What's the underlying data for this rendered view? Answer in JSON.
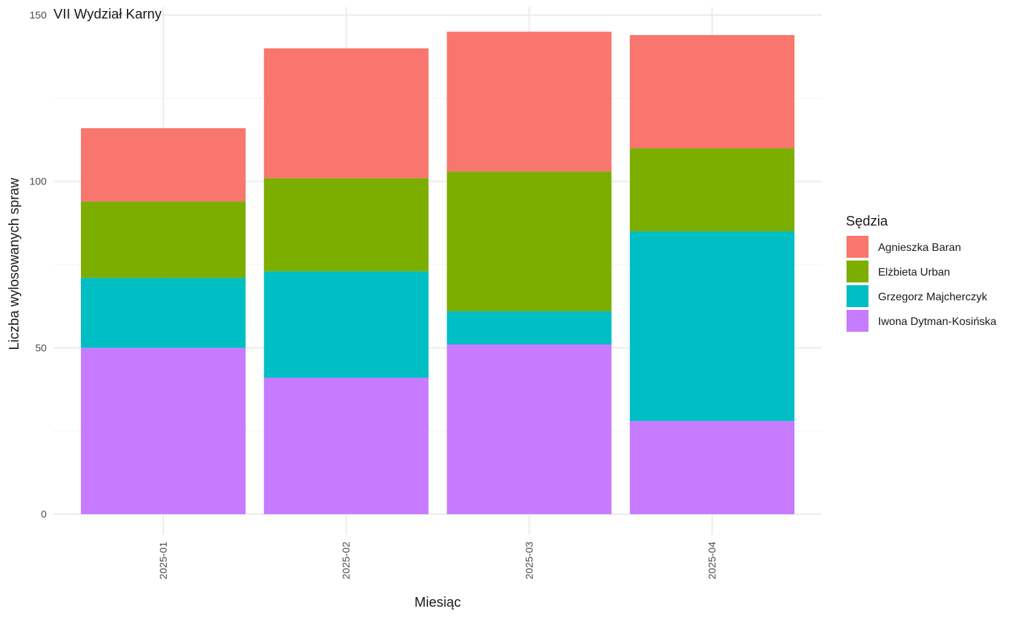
{
  "chart_data": {
    "type": "bar",
    "stacked": true,
    "title": "VII Wydział Karny",
    "xlabel": "Miesiąc",
    "ylabel": "Liczba wylosowanych spraw",
    "ylim": [
      0,
      150
    ],
    "yticks": [
      0,
      50,
      100,
      150
    ],
    "categories": [
      "2025-01",
      "2025-02",
      "2025-03",
      "2025-04"
    ],
    "legend": {
      "title": "Sędzia",
      "position": "right"
    },
    "grid": true,
    "series": [
      {
        "name": "Iwona Dytman-Kosińska",
        "color": "#C77CFF",
        "values": [
          50,
          41,
          51,
          28
        ]
      },
      {
        "name": "Grzegorz Majcherczyk",
        "color": "#00BFC4",
        "values": [
          21,
          32,
          10,
          57
        ]
      },
      {
        "name": "Elżbieta Urban",
        "color": "#7CAE00",
        "values": [
          23,
          28,
          42,
          25
        ]
      },
      {
        "name": "Agnieszka Baran",
        "color": "#F8766D",
        "values": [
          22,
          39,
          42,
          34
        ]
      }
    ],
    "legend_order": [
      "Agnieszka Baran",
      "Elżbieta Urban",
      "Grzegorz Majcherczyk",
      "Iwona Dytman-Kosińska"
    ]
  }
}
